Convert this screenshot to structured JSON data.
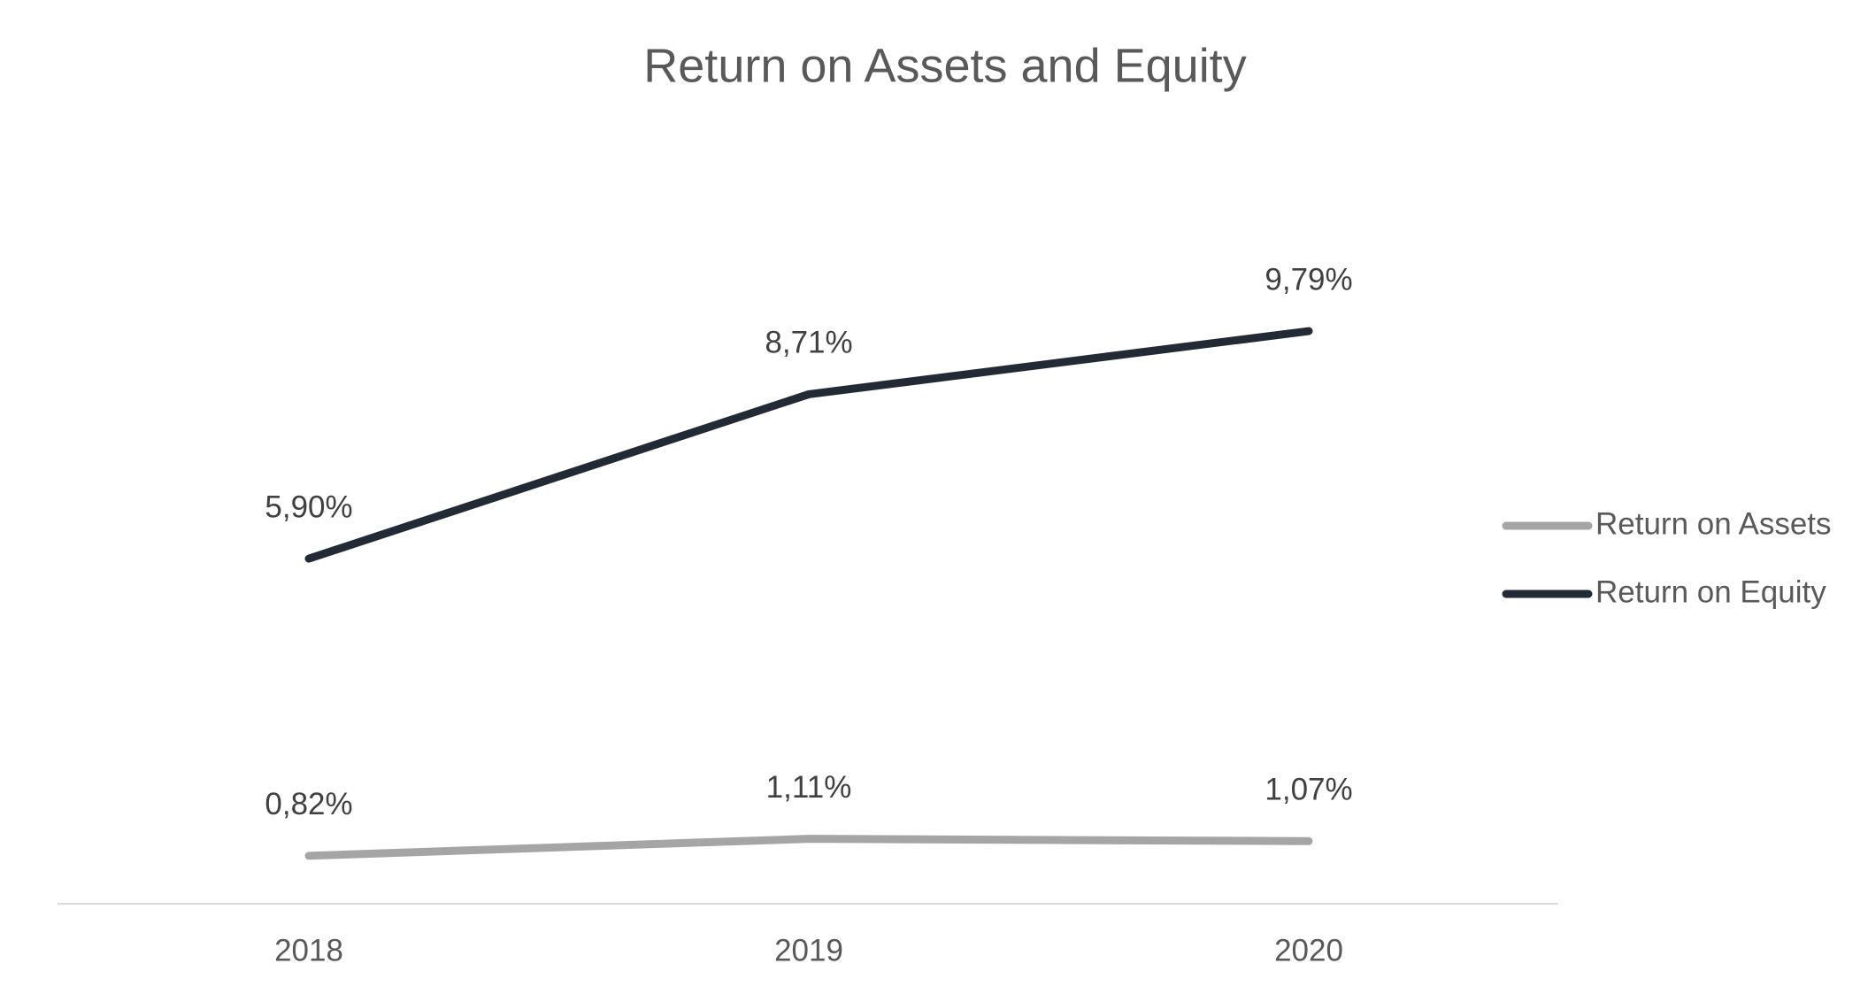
{
  "chart_data": {
    "type": "line",
    "title": "Return on Assets and Equity",
    "categories": [
      "2018",
      "2019",
      "2020"
    ],
    "series": [
      {
        "name": "Return on Assets",
        "color": "#a5a5a5",
        "values": [
          0.82,
          1.11,
          1.07
        ],
        "value_labels": [
          "0,82%",
          "1,11%",
          "1,07%"
        ]
      },
      {
        "name": "Return on Equity",
        "color": "#222a35",
        "values": [
          5.9,
          8.71,
          9.79
        ],
        "value_labels": [
          "5,90%",
          "8,71%",
          "9,79%"
        ]
      }
    ],
    "ylim": [
      0,
      12
    ],
    "legend": "right"
  }
}
